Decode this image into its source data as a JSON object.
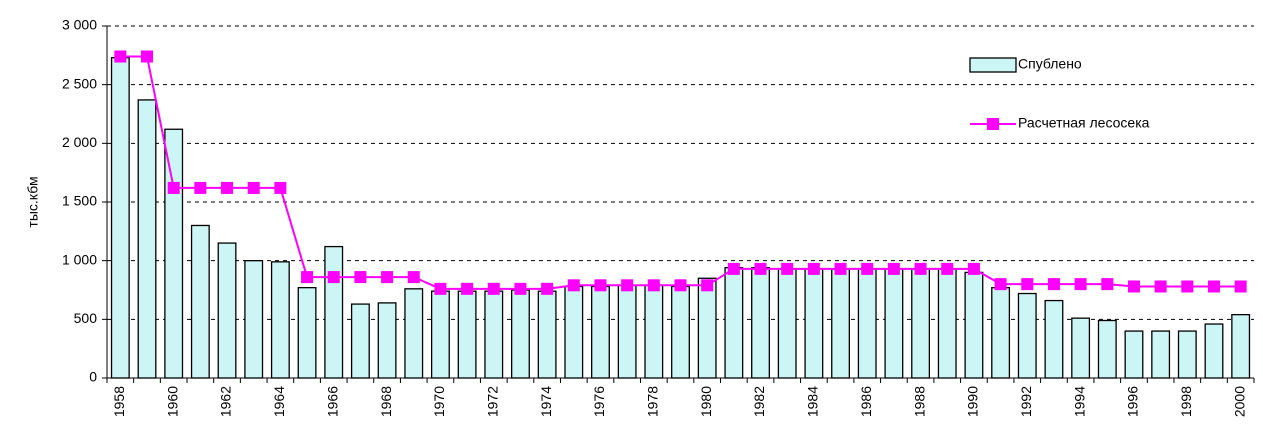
{
  "chart_data": {
    "type": "bar_line",
    "y_label": "тыс.кбм",
    "categories": [
      "1958",
      null,
      "1960",
      null,
      "1962",
      null,
      "1964",
      null,
      "1966",
      null,
      "1968",
      null,
      "1970",
      null,
      "1972",
      null,
      "1974",
      null,
      "1976",
      null,
      "1978",
      null,
      "1980",
      null,
      "1982",
      null,
      "1984",
      null,
      "1986",
      null,
      "1988",
      null,
      "1990",
      null,
      "1992",
      null,
      "1994",
      null,
      "1996",
      null,
      "1998",
      null,
      "2000"
    ],
    "series": [
      {
        "name": "Спублено",
        "type": "bar",
        "color": "#ccf5f5",
        "values": [
          2730,
          2370,
          2120,
          1300,
          1150,
          1000,
          990,
          770,
          1120,
          630,
          640,
          760,
          740,
          740,
          740,
          750,
          740,
          780,
          780,
          790,
          790,
          780,
          850,
          940,
          940,
          930,
          930,
          930,
          930,
          930,
          930,
          930,
          900,
          770,
          720,
          660,
          510,
          490,
          400,
          400,
          400,
          460,
          540
        ]
      },
      {
        "name": "Расчетная лесосека",
        "type": "line",
        "color": "#ff00ff",
        "values": [
          2740,
          2740,
          1620,
          1620,
          1620,
          1620,
          1620,
          860,
          860,
          860,
          860,
          860,
          760,
          760,
          760,
          760,
          760,
          790,
          790,
          790,
          790,
          790,
          790,
          930,
          930,
          930,
          930,
          930,
          930,
          930,
          930,
          930,
          930,
          800,
          800,
          800,
          800,
          800,
          780,
          780,
          780,
          780,
          780
        ]
      }
    ],
    "ylim": [
      0,
      3000
    ],
    "yticks": [
      0,
      500,
      {
        "value": 1000,
        "label": "1 000"
      },
      {
        "value": 1500,
        "label": "1 500"
      },
      {
        "value": 2000,
        "label": "2 000"
      },
      {
        "value": 2500,
        "label": "2 500"
      },
      {
        "value": 3000,
        "label": "3 000"
      }
    ],
    "grid": true,
    "legend": "upper right"
  }
}
